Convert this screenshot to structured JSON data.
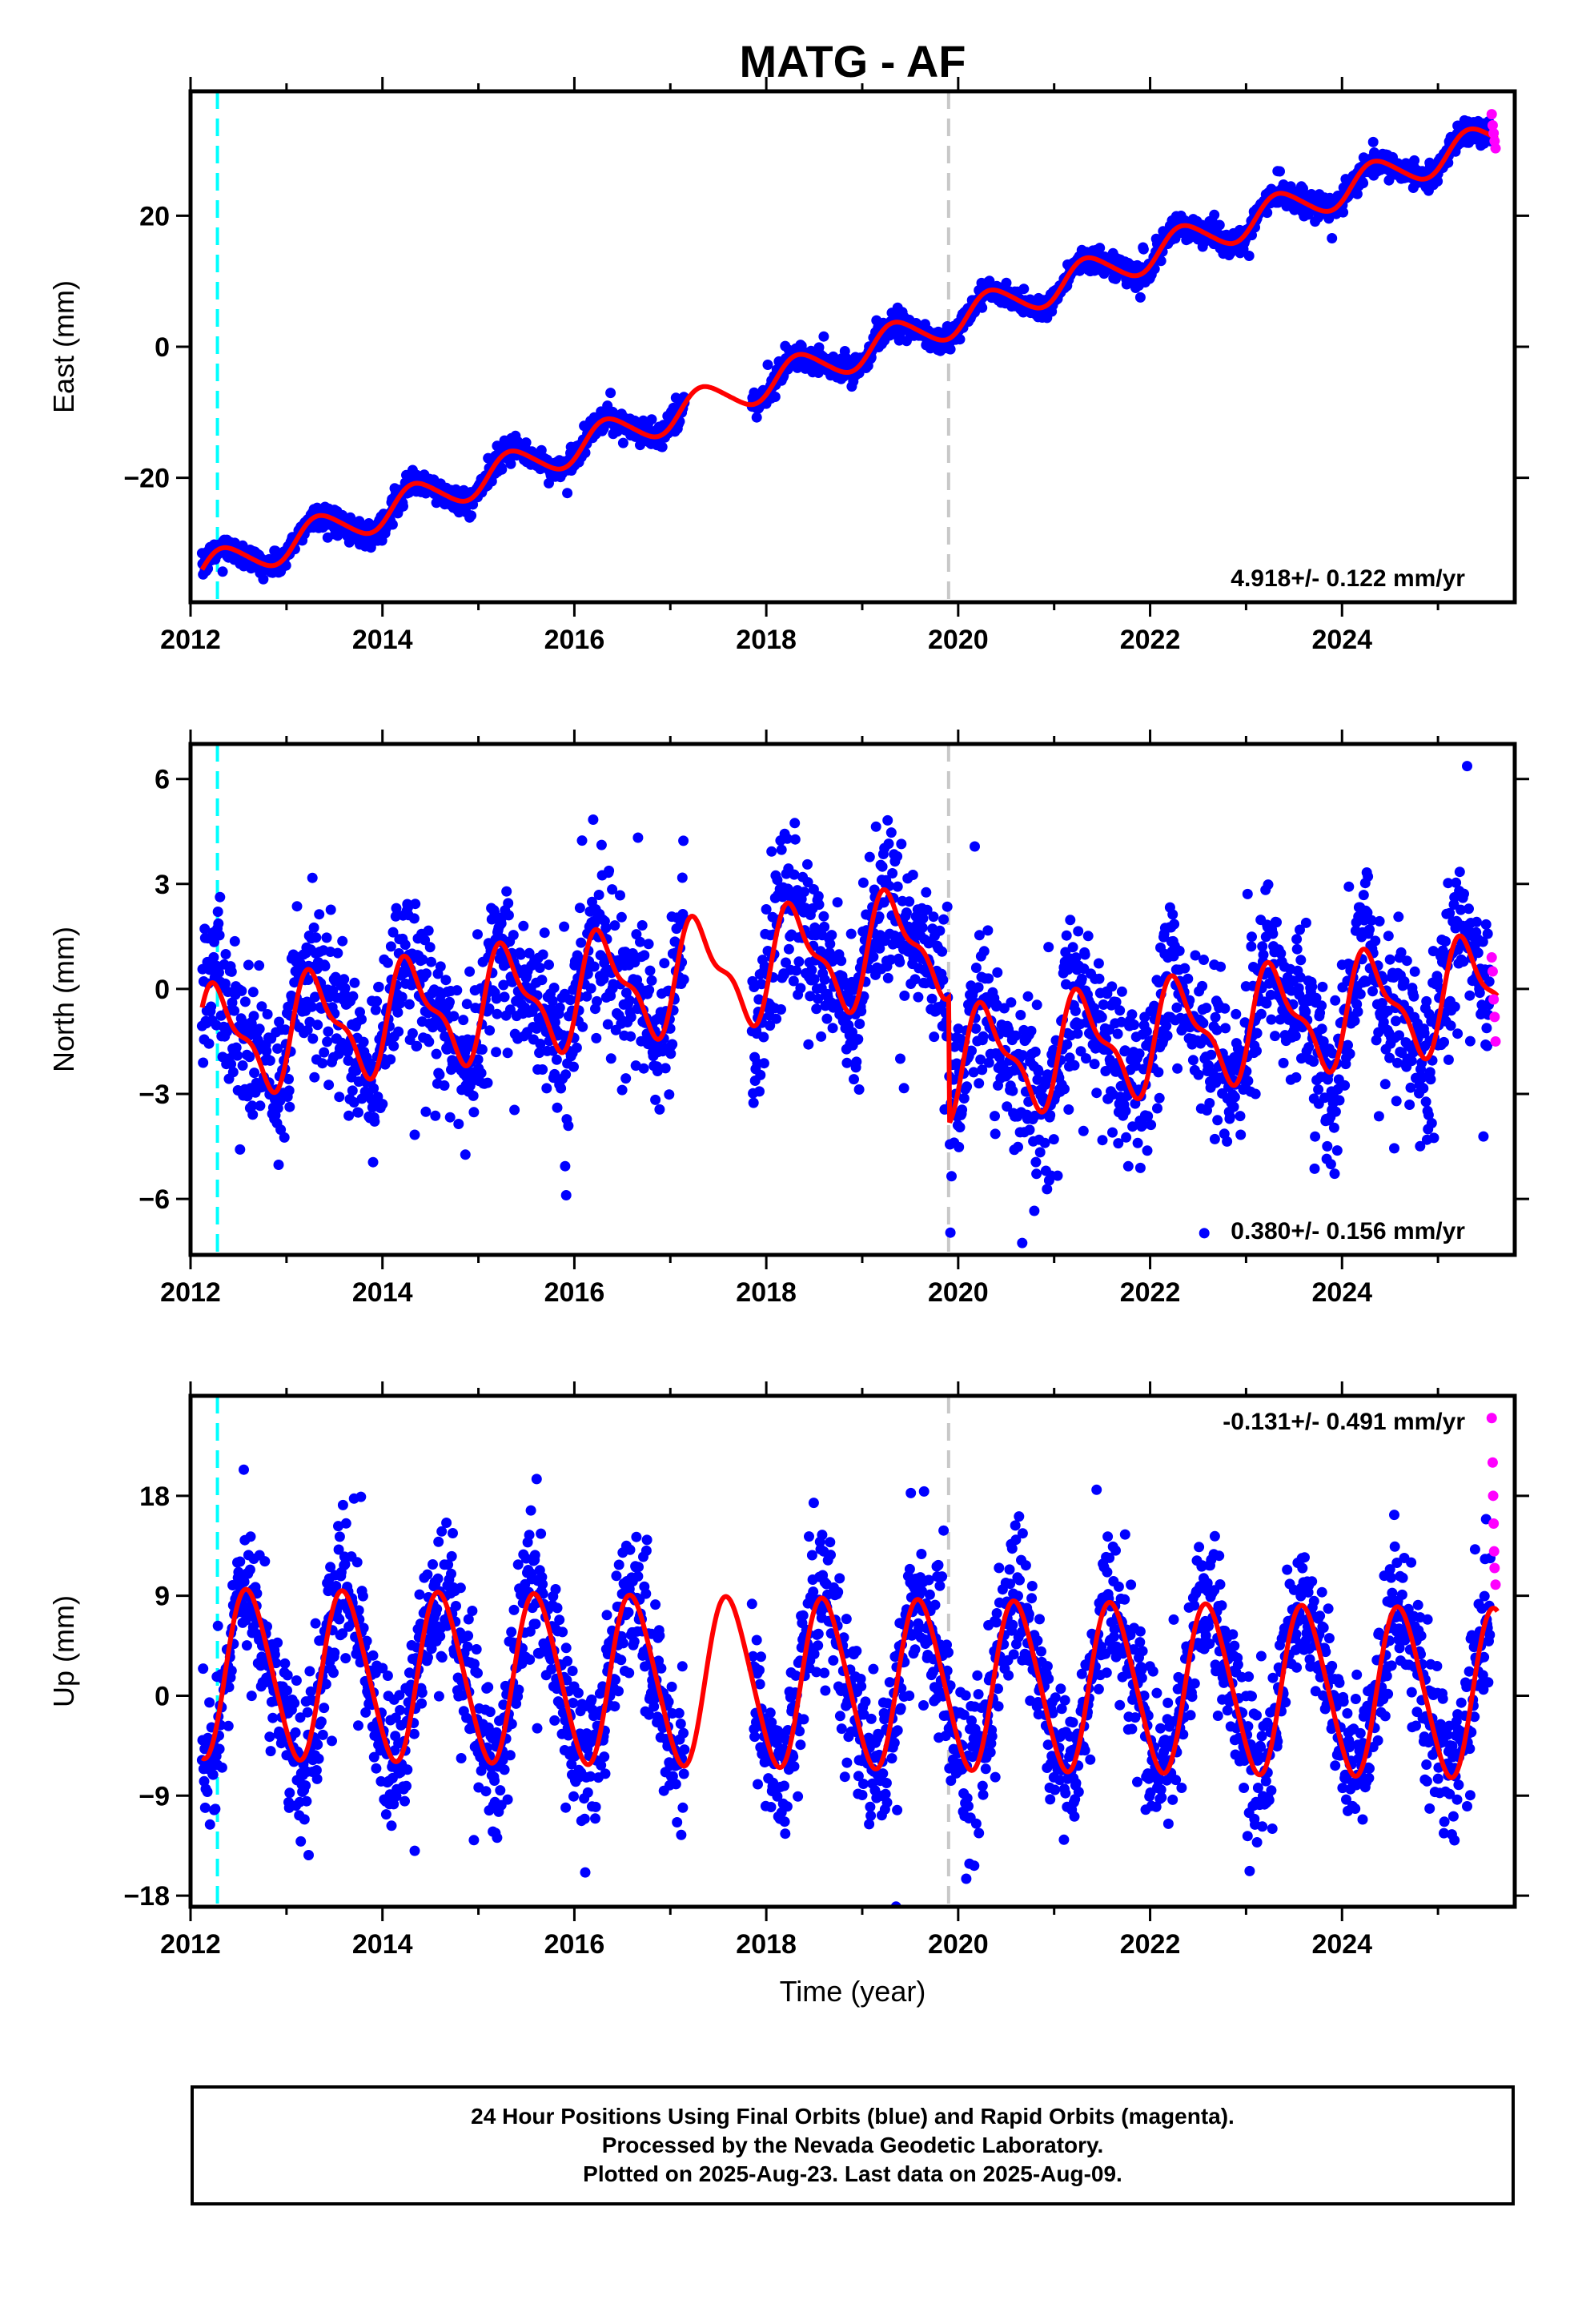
{
  "title": "MATG - AF",
  "colors": {
    "final_orbits": "#0000ff",
    "rapid_orbits": "#ff00ff",
    "fit": "#ff0000",
    "event_cyan": "#00ffff",
    "event_gray": "#c8c8c8"
  },
  "footer": {
    "line1": "24 Hour Positions Using Final Orbits (blue) and Rapid Orbits (magenta).",
    "line2": "Processed by the Nevada Geodetic Laboratory.",
    "line3": "Plotted on 2025-Aug-23. Last data on 2025-Aug-09."
  },
  "chart_data": [
    {
      "type": "scatter",
      "ylabel": "East (mm)",
      "xlabel": "",
      "xlim": [
        2012.0,
        2025.8
      ],
      "ylim": [
        -39,
        39
      ],
      "yticks": [
        -20,
        0,
        20
      ],
      "ytick_labels": [
        "−20",
        "0",
        "20"
      ],
      "xticks": [
        2012,
        2014,
        2016,
        2018,
        2020,
        2022,
        2024
      ],
      "xtick_labels": [
        "2012",
        "2014",
        "2016",
        "2018",
        "2020",
        "2022",
        "2024"
      ],
      "rate_text": "4.918+/- 0.122 mm/yr",
      "rate_position": "bottom-right",
      "events": [
        {
          "x": 2012.28,
          "color": "cyan"
        },
        {
          "x": 2019.9,
          "color": "gray"
        }
      ],
      "fit": {
        "rate": 4.918,
        "offset_2012": -35.0,
        "annual_amp": 2.6,
        "phase": 0.1,
        "semiannual_amp": 0.3,
        "jump_2019_9": 0.0
      },
      "scatter_sigma": 0.9,
      "gaps": [
        [
          2017.15,
          2017.85
        ]
      ],
      "series": [
        {
          "name": "Final Orbits",
          "color": "blue"
        },
        {
          "name": "Rapid Orbits",
          "color": "magenta",
          "x": [
            2025.56,
            2025.57,
            2025.58,
            2025.59,
            2025.6
          ],
          "y": [
            35.5,
            33.8,
            32.6,
            31.4,
            30.3
          ]
        }
      ]
    },
    {
      "type": "scatter",
      "ylabel": "North (mm)",
      "xlabel": "",
      "xlim": [
        2012.0,
        2025.8
      ],
      "ylim": [
        -7.6,
        7.0
      ],
      "yticks": [
        -6,
        -3,
        0,
        3,
        6
      ],
      "ytick_labels": [
        "−6",
        "−3",
        "0",
        "3",
        "6"
      ],
      "xticks": [
        2012,
        2014,
        2016,
        2018,
        2020,
        2022,
        2024
      ],
      "xtick_labels": [
        "2012",
        "2014",
        "2016",
        "2018",
        "2020",
        "2022",
        "2024"
      ],
      "rate_text": "0.380+/- 0.156 mm/yr",
      "rate_position": "bottom-right",
      "events": [
        {
          "x": 2012.28,
          "color": "cyan"
        },
        {
          "x": 2019.9,
          "color": "gray"
        }
      ],
      "fit": {
        "rate": 0.38,
        "offset_2012": -1.6,
        "annual_amp": 1.4,
        "phase": 0.05,
        "semiannual_amp": 0.55,
        "jump_2019_9": -3.6
      },
      "scatter_sigma": 1.1,
      "gaps": [
        [
          2017.15,
          2017.85
        ]
      ],
      "series": [
        {
          "name": "Final Orbits",
          "color": "blue"
        },
        {
          "name": "Rapid Orbits",
          "color": "magenta",
          "x": [
            2025.56,
            2025.57,
            2025.58,
            2025.59,
            2025.6
          ],
          "y": [
            0.9,
            0.5,
            -0.3,
            -0.8,
            -1.5
          ]
        }
      ]
    },
    {
      "type": "scatter",
      "ylabel": "Up (mm)",
      "xlabel": "Time (year)",
      "xlim": [
        2012.0,
        2025.8
      ],
      "ylim": [
        -19,
        27
      ],
      "yticks": [
        -18,
        -9,
        0,
        9,
        18
      ],
      "ytick_labels": [
        "−18",
        "−9",
        "0",
        "9",
        "18"
      ],
      "xticks": [
        2012,
        2014,
        2016,
        2018,
        2020,
        2022,
        2024
      ],
      "xtick_labels": [
        "2012",
        "2014",
        "2016",
        "2018",
        "2020",
        "2022",
        "2024"
      ],
      "rate_text": "-0.131+/- 0.491 mm/yr",
      "rate_position": "top-right",
      "events": [
        {
          "x": 2012.28,
          "color": "cyan"
        },
        {
          "x": 2019.9,
          "color": "gray"
        }
      ],
      "fit": {
        "rate": -0.131,
        "offset_2012": 2.0,
        "annual_amp": 7.5,
        "phase": 0.36,
        "semiannual_amp": 0.8,
        "jump_2019_9": 0.0
      },
      "scatter_sigma": 3.2,
      "gaps": [
        [
          2017.15,
          2017.85
        ]
      ],
      "series": [
        {
          "name": "Final Orbits",
          "color": "blue"
        },
        {
          "name": "Rapid Orbits",
          "color": "magenta",
          "x": [
            2025.56,
            2025.57,
            2025.575,
            2025.58,
            2025.585,
            2025.59,
            2025.6
          ],
          "y": [
            25.0,
            21.0,
            18.0,
            15.5,
            13.0,
            11.5,
            10.0
          ]
        }
      ]
    }
  ]
}
